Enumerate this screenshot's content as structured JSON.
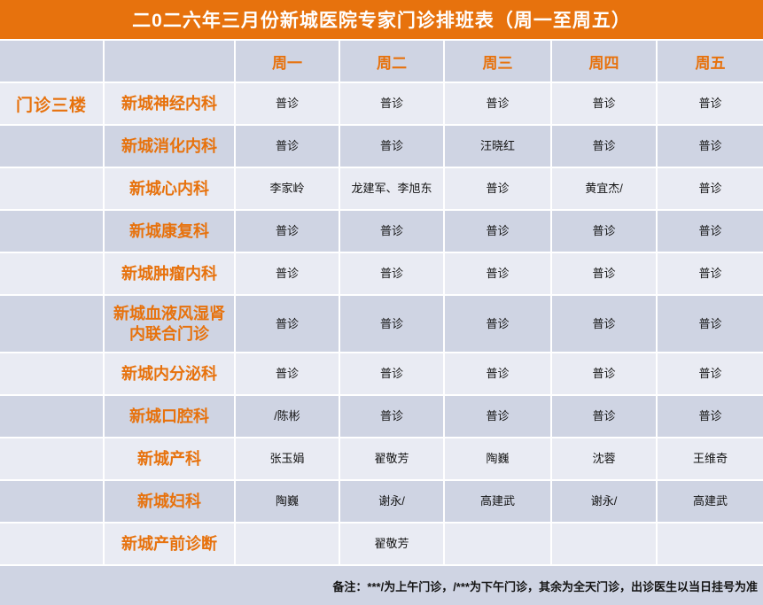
{
  "title": "二0二六年三月份新城医院专家门诊排班表（周一至周五）",
  "table": {
    "location_label": "门诊三楼",
    "day_headers": [
      "周一",
      "周二",
      "周三",
      "周四",
      "周五"
    ],
    "rows": [
      {
        "department": "新城神经内科",
        "cells": [
          "普诊",
          "普诊",
          "普诊",
          "普诊",
          "普诊"
        ]
      },
      {
        "department": "新城消化内科",
        "cells": [
          "普诊",
          "普诊",
          "汪晓红",
          "普诊",
          "普诊"
        ]
      },
      {
        "department": "新城心内科",
        "cells": [
          "李家岭",
          "龙建军、李旭东",
          "普诊",
          "黄宜杰/",
          "普诊"
        ]
      },
      {
        "department": "新城康复科",
        "cells": [
          "普诊",
          "普诊",
          "普诊",
          "普诊",
          "普诊"
        ]
      },
      {
        "department": "新城肿瘤内科",
        "cells": [
          "普诊",
          "普诊",
          "普诊",
          "普诊",
          "普诊"
        ]
      },
      {
        "department": "新城血液风湿肾内联合门诊",
        "cells": [
          "普诊",
          "普诊",
          "普诊",
          "普诊",
          "普诊"
        ]
      },
      {
        "department": "新城内分泌科",
        "cells": [
          "普诊",
          "普诊",
          "普诊",
          "普诊",
          "普诊"
        ]
      },
      {
        "department": "新城口腔科",
        "cells": [
          "/陈彬",
          "普诊",
          "普诊",
          "普诊",
          "普诊"
        ]
      },
      {
        "department": "新城产科",
        "cells": [
          "张玉娟",
          "翟敬芳",
          "陶巍",
          "沈蓉",
          "王维奇"
        ]
      },
      {
        "department": "新城妇科",
        "cells": [
          "陶巍",
          "谢永/",
          "高建武",
          "谢永/",
          "高建武"
        ]
      },
      {
        "department": "新城产前诊断",
        "cells": [
          "",
          "翟敬芳",
          "",
          "",
          ""
        ]
      }
    ]
  },
  "note": "备注：***/为上午门诊，/***为下午门诊，其余为全天门诊，出诊医生以当日挂号为准",
  "colors": {
    "accent_orange": "#E7720D",
    "row_light": "#E9EBF3",
    "row_dark": "#CFD4E3",
    "text_dark": "#141414",
    "title_text": "#FFFFFF"
  }
}
